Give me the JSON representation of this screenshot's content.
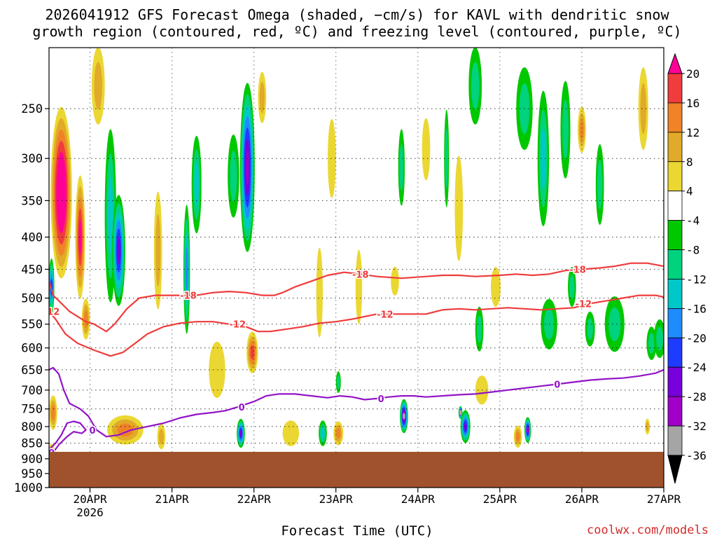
{
  "chart_data": {
    "type": "heatmap",
    "title_lines": [
      "2026041912 GFS Forecast Omega (shaded, −cm/s) for KAVL with dendritic snow",
      "growth region (contoured, red, ºC) and freezing level (contoured, purple, ºC)"
    ],
    "xlabel": "Forecast Time (UTC)",
    "ylabel": "",
    "credit": "coolwx.com/models",
    "y_axis": {
      "scale": "log-pressure",
      "reversed": true,
      "range_hpa": [
        200,
        1000
      ],
      "ticks": [
        250,
        300,
        350,
        400,
        450,
        500,
        550,
        600,
        650,
        700,
        750,
        800,
        850,
        900,
        950,
        1000
      ]
    },
    "x_axis": {
      "range": [
        "2026-04-19T12",
        "2026-04-27T00"
      ],
      "ticks": [
        {
          "t": 0.5,
          "label": "20APR",
          "sub": "2026"
        },
        {
          "t": 1.5,
          "label": "21APR",
          "sub": ""
        },
        {
          "t": 2.5,
          "label": "22APR",
          "sub": ""
        },
        {
          "t": 3.5,
          "label": "23APR",
          "sub": ""
        },
        {
          "t": 4.5,
          "label": "24APR",
          "sub": ""
        },
        {
          "t": 5.5,
          "label": "25APR",
          "sub": ""
        },
        {
          "t": 6.5,
          "label": "26APR",
          "sub": ""
        },
        {
          "t": 7.5,
          "label": "27APR",
          "sub": ""
        }
      ]
    },
    "grid": true,
    "colorbar": {
      "labels": [
        20,
        16,
        12,
        8,
        4,
        -4,
        -8,
        -12,
        -16,
        -20,
        -24,
        -28,
        -32,
        -36
      ],
      "colors": [
        "#ff0096",
        "#f03c3c",
        "#f08228",
        "#e1aa28",
        "#ebd732",
        "#ffffff",
        "#00c800",
        "#00d27d",
        "#00c8c8",
        "#1e8cff",
        "#1e3cff",
        "#7800dc",
        "#a000c8",
        "#a5a5a5",
        "#000000"
      ]
    },
    "surface_color": "#a0522d",
    "omega_blobs": [
      {
        "t": 0.05,
        "p": 760,
        "dt": 0.05,
        "dp": 80,
        "v": 14
      },
      {
        "t": 0.03,
        "p": 880,
        "dt": 0.04,
        "dp": 40,
        "v": 8
      },
      {
        "t": 0.03,
        "p": 480,
        "dt": 0.035,
        "dp": 90,
        "v": -20
      },
      {
        "t": 0.15,
        "p": 340,
        "dt": 0.13,
        "dp": 200,
        "v": 28
      },
      {
        "t": 0.38,
        "p": 400,
        "dt": 0.06,
        "dp": 170,
        "v": 20
      },
      {
        "t": 0.45,
        "p": 540,
        "dt": 0.05,
        "dp": 70,
        "v": 12
      },
      {
        "t": 0.6,
        "p": 230,
        "dt": 0.08,
        "dp": 60,
        "v": 10
      },
      {
        "t": 0.75,
        "p": 370,
        "dt": 0.07,
        "dp": 220,
        "v": -12
      },
      {
        "t": 0.85,
        "p": 420,
        "dt": 0.08,
        "dp": 160,
        "v": -26
      },
      {
        "t": 0.93,
        "p": 810,
        "dt": 0.22,
        "dp": 70,
        "v": 12
      },
      {
        "t": 1.33,
        "p": 420,
        "dt": 0.05,
        "dp": 170,
        "v": 10
      },
      {
        "t": 1.37,
        "p": 830,
        "dt": 0.05,
        "dp": 60,
        "v": 8
      },
      {
        "t": 1.68,
        "p": 450,
        "dt": 0.04,
        "dp": 200,
        "v": -18
      },
      {
        "t": 1.8,
        "p": 330,
        "dt": 0.06,
        "dp": 110,
        "v": -12
      },
      {
        "t": 2.05,
        "p": 650,
        "dt": 0.1,
        "dp": 120,
        "v": 6
      },
      {
        "t": 2.25,
        "p": 320,
        "dt": 0.07,
        "dp": 90,
        "v": -10
      },
      {
        "t": 2.42,
        "p": 310,
        "dt": 0.09,
        "dp": 180,
        "v": -30
      },
      {
        "t": 2.34,
        "p": 820,
        "dt": 0.05,
        "dp": 70,
        "v": -24
      },
      {
        "t": 2.48,
        "p": 610,
        "dt": 0.07,
        "dp": 80,
        "v": 18
      },
      {
        "t": 2.6,
        "p": 240,
        "dt": 0.05,
        "dp": 40,
        "v": 8
      },
      {
        "t": 2.95,
        "p": 820,
        "dt": 0.1,
        "dp": 60,
        "v": 5
      },
      {
        "t": 3.3,
        "p": 490,
        "dt": 0.04,
        "dp": 150,
        "v": 6
      },
      {
        "t": 3.34,
        "p": 820,
        "dt": 0.05,
        "dp": 60,
        "v": -14
      },
      {
        "t": 3.45,
        "p": 300,
        "dt": 0.05,
        "dp": 80,
        "v": 5
      },
      {
        "t": 3.53,
        "p": 820,
        "dt": 0.06,
        "dp": 55,
        "v": 12
      },
      {
        "t": 3.53,
        "p": 680,
        "dt": 0.03,
        "dp": 40,
        "v": -8
      },
      {
        "t": 3.78,
        "p": 480,
        "dt": 0.04,
        "dp": 120,
        "v": 6
      },
      {
        "t": 4.22,
        "p": 470,
        "dt": 0.05,
        "dp": 40,
        "v": 6
      },
      {
        "t": 4.3,
        "p": 310,
        "dt": 0.04,
        "dp": 80,
        "v": -8
      },
      {
        "t": 4.33,
        "p": 770,
        "dt": 0.05,
        "dp": 80,
        "v": -32
      },
      {
        "t": 4.6,
        "p": 290,
        "dt": 0.05,
        "dp": 60,
        "v": 5
      },
      {
        "t": 4.85,
        "p": 300,
        "dt": 0.03,
        "dp": 100,
        "v": -8
      },
      {
        "t": 5.0,
        "p": 360,
        "dt": 0.05,
        "dp": 130,
        "v": 5
      },
      {
        "t": 5.08,
        "p": 800,
        "dt": 0.06,
        "dp": 80,
        "v": -26
      },
      {
        "t": 5.02,
        "p": 760,
        "dt": 0.025,
        "dp": 20,
        "v": -34
      },
      {
        "t": 5.2,
        "p": 230,
        "dt": 0.08,
        "dp": 60,
        "v": -8
      },
      {
        "t": 5.25,
        "p": 560,
        "dt": 0.05,
        "dp": 80,
        "v": -8
      },
      {
        "t": 5.28,
        "p": 700,
        "dt": 0.08,
        "dp": 60,
        "v": 6
      },
      {
        "t": 5.45,
        "p": 480,
        "dt": 0.06,
        "dp": 60,
        "v": 5
      },
      {
        "t": 5.72,
        "p": 830,
        "dt": 0.05,
        "dp": 50,
        "v": 12
      },
      {
        "t": 5.8,
        "p": 250,
        "dt": 0.1,
        "dp": 70,
        "v": -8
      },
      {
        "t": 5.84,
        "p": 810,
        "dt": 0.04,
        "dp": 60,
        "v": -28
      },
      {
        "t": 6.03,
        "p": 300,
        "dt": 0.07,
        "dp": 140,
        "v": -14
      },
      {
        "t": 6.1,
        "p": 550,
        "dt": 0.1,
        "dp": 90,
        "v": -8
      },
      {
        "t": 6.3,
        "p": 270,
        "dt": 0.06,
        "dp": 90,
        "v": -10
      },
      {
        "t": 6.38,
        "p": 480,
        "dt": 0.05,
        "dp": 60,
        "v": -8
      },
      {
        "t": 6.5,
        "p": 270,
        "dt": 0.05,
        "dp": 40,
        "v": 12
      },
      {
        "t": 6.6,
        "p": 560,
        "dt": 0.06,
        "dp": 60,
        "v": -8
      },
      {
        "t": 6.72,
        "p": 330,
        "dt": 0.05,
        "dp": 90,
        "v": -8
      },
      {
        "t": 6.9,
        "p": 550,
        "dt": 0.12,
        "dp": 100,
        "v": -9
      },
      {
        "t": 7.25,
        "p": 250,
        "dt": 0.06,
        "dp": 70,
        "v": 8
      },
      {
        "t": 7.35,
        "p": 590,
        "dt": 0.06,
        "dp": 60,
        "v": -8
      },
      {
        "t": 7.3,
        "p": 800,
        "dt": 0.03,
        "dp": 30,
        "v": 8
      },
      {
        "t": 7.45,
        "p": 580,
        "dt": 0.07,
        "dp": 70,
        "v": -9
      }
    ],
    "contours": [
      {
        "kind": "dgz",
        "label": "-18",
        "points": [
          [
            0.0,
            470
          ],
          [
            0.05,
            495
          ],
          [
            0.12,
            505
          ],
          [
            0.25,
            525
          ],
          [
            0.45,
            545
          ],
          [
            0.55,
            550
          ],
          [
            0.7,
            565
          ],
          [
            0.8,
            550
          ],
          [
            0.95,
            520
          ],
          [
            1.1,
            500
          ],
          [
            1.3,
            495
          ],
          [
            1.5,
            495
          ],
          [
            1.8,
            495
          ],
          [
            2.0,
            490
          ],
          [
            2.2,
            488
          ],
          [
            2.4,
            490
          ],
          [
            2.6,
            495
          ],
          [
            2.75,
            495
          ],
          [
            2.85,
            490
          ],
          [
            3.0,
            480
          ],
          [
            3.2,
            470
          ],
          [
            3.4,
            460
          ],
          [
            3.6,
            455
          ],
          [
            3.8,
            458
          ],
          [
            4.0,
            462
          ],
          [
            4.3,
            465
          ],
          [
            4.6,
            462
          ],
          [
            4.8,
            460
          ],
          [
            5.0,
            460
          ],
          [
            5.2,
            462
          ],
          [
            5.5,
            460
          ],
          [
            5.7,
            458
          ],
          [
            5.9,
            460
          ],
          [
            6.1,
            458
          ],
          [
            6.3,
            452
          ],
          [
            6.5,
            450
          ],
          [
            6.7,
            448
          ],
          [
            6.9,
            445
          ],
          [
            7.1,
            440
          ],
          [
            7.3,
            440
          ],
          [
            7.5,
            445
          ]
        ],
        "label_ts": [
          1.7,
          3.8,
          6.45
        ]
      },
      {
        "kind": "dgz",
        "label": "-12",
        "points": [
          [
            0.0,
            525
          ],
          [
            0.08,
            540
          ],
          [
            0.2,
            570
          ],
          [
            0.35,
            590
          ],
          [
            0.55,
            605
          ],
          [
            0.75,
            618
          ],
          [
            0.9,
            610
          ],
          [
            1.05,
            590
          ],
          [
            1.2,
            570
          ],
          [
            1.4,
            555
          ],
          [
            1.6,
            548
          ],
          [
            1.8,
            545
          ],
          [
            2.0,
            545
          ],
          [
            2.2,
            550
          ],
          [
            2.4,
            555
          ],
          [
            2.55,
            565
          ],
          [
            2.7,
            565
          ],
          [
            2.9,
            560
          ],
          [
            3.1,
            555
          ],
          [
            3.3,
            548
          ],
          [
            3.5,
            545
          ],
          [
            3.7,
            540
          ],
          [
            3.85,
            535
          ],
          [
            4.0,
            530
          ],
          [
            4.2,
            530
          ],
          [
            4.4,
            530
          ],
          [
            4.6,
            530
          ],
          [
            4.8,
            522
          ],
          [
            5.0,
            520
          ],
          [
            5.2,
            522
          ],
          [
            5.4,
            520
          ],
          [
            5.6,
            518
          ],
          [
            5.8,
            520
          ],
          [
            6.0,
            522
          ],
          [
            6.2,
            520
          ],
          [
            6.4,
            518
          ],
          [
            6.6,
            510
          ],
          [
            6.8,
            505
          ],
          [
            7.0,
            500
          ],
          [
            7.2,
            495
          ],
          [
            7.4,
            495
          ],
          [
            7.5,
            498
          ]
        ],
        "label_ts": [
          0.03,
          2.3,
          4.1,
          6.52
        ]
      },
      {
        "kind": "frz",
        "label": "0",
        "points": [
          [
            0.0,
            650
          ],
          [
            0.05,
            645
          ],
          [
            0.12,
            660
          ],
          [
            0.18,
            700
          ],
          [
            0.25,
            735
          ],
          [
            0.38,
            750
          ],
          [
            0.48,
            770
          ],
          [
            0.58,
            810
          ],
          [
            0.7,
            830
          ],
          [
            0.85,
            825
          ],
          [
            1.0,
            810
          ],
          [
            1.2,
            800
          ],
          [
            1.4,
            790
          ],
          [
            1.6,
            775
          ],
          [
            1.8,
            765
          ],
          [
            2.0,
            760
          ],
          [
            2.15,
            755
          ],
          [
            2.3,
            745
          ],
          [
            2.5,
            730
          ],
          [
            2.65,
            715
          ],
          [
            2.8,
            710
          ],
          [
            3.0,
            710
          ],
          [
            3.2,
            715
          ],
          [
            3.4,
            720
          ],
          [
            3.55,
            715
          ],
          [
            3.7,
            718
          ],
          [
            3.85,
            725
          ],
          [
            4.0,
            722
          ],
          [
            4.15,
            718
          ],
          [
            4.3,
            715
          ],
          [
            4.45,
            715
          ],
          [
            4.6,
            718
          ],
          [
            4.8,
            715
          ],
          [
            5.0,
            712
          ],
          [
            5.2,
            710
          ],
          [
            5.4,
            705
          ],
          [
            5.6,
            700
          ],
          [
            5.8,
            695
          ],
          [
            6.0,
            690
          ],
          [
            6.2,
            685
          ],
          [
            6.4,
            680
          ],
          [
            6.6,
            675
          ],
          [
            6.8,
            672
          ],
          [
            7.0,
            670
          ],
          [
            7.2,
            665
          ],
          [
            7.4,
            658
          ],
          [
            7.5,
            650
          ]
        ],
        "label_ts": [
          0.53,
          2.35,
          4.05,
          6.2
        ]
      },
      {
        "kind": "frz",
        "label": "0",
        "closed": true,
        "points": [
          [
            0.0,
            870
          ],
          [
            0.08,
            850
          ],
          [
            0.15,
            825
          ],
          [
            0.22,
            790
          ],
          [
            0.3,
            785
          ],
          [
            0.38,
            790
          ],
          [
            0.45,
            810
          ],
          [
            0.4,
            820
          ],
          [
            0.3,
            815
          ],
          [
            0.22,
            830
          ],
          [
            0.12,
            855
          ],
          [
            0.05,
            880
          ],
          [
            0.0,
            880
          ]
        ],
        "label_ts": [
          0.03
        ]
      }
    ]
  }
}
